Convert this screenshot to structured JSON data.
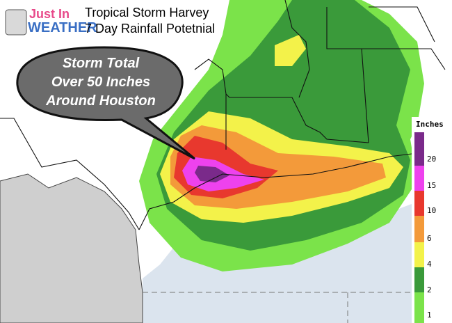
{
  "logo": {
    "line1": "Just In",
    "line2": "WEATHER"
  },
  "title": [
    "Tropical Storm Harvey",
    "7 Day Rainfall Potetnial"
  ],
  "callout": [
    "Storm Total",
    "Over 50 Inches",
    "Around Houston"
  ],
  "legend": {
    "title": "Inches",
    "labels": [
      20,
      15,
      10,
      6,
      4,
      2,
      1
    ]
  }
}
